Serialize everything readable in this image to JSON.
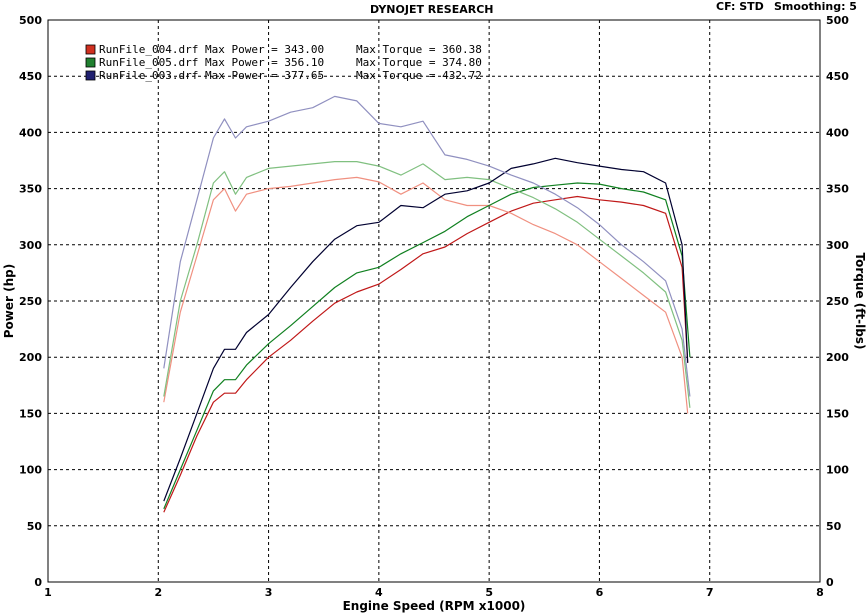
{
  "header": {
    "title": "DYNOJET RESEARCH",
    "cf_label": "CF: STD",
    "smoothing_label": "Smoothing: 5"
  },
  "legend": [
    {
      "name": "RunFile_004.drf",
      "power_label": "Max Power = 343.00",
      "torque_label": "Max Torque = 360.38",
      "color": "#d03020"
    },
    {
      "name": "RunFile_005.drf",
      "power_label": "Max Power = 356.10",
      "torque_label": "Max Torque = 374.80",
      "color": "#208030"
    },
    {
      "name": "RunFile_003.drf",
      "power_label": "Max Power = 377.65",
      "torque_label": "Max Torque = 432.72",
      "color": "#202070"
    }
  ],
  "chart_data": {
    "type": "line",
    "title": "DYNOJET RESEARCH",
    "xlabel": "Engine Speed (RPM x1000)",
    "ylabel": "Power (hp)",
    "y2label": "Torque (ft-lbs)",
    "xlim": [
      1,
      8
    ],
    "ylim": [
      0,
      500
    ],
    "y2lim": [
      0,
      500
    ],
    "xticks": [
      "1",
      "2",
      "3",
      "4",
      "5",
      "6",
      "7",
      "8"
    ],
    "yticks": [
      "0",
      "50",
      "100",
      "150",
      "200",
      "250",
      "300",
      "350",
      "400",
      "450",
      "500"
    ],
    "y2ticks": [
      "0",
      "50",
      "100",
      "150",
      "200",
      "250",
      "300",
      "350",
      "400",
      "450",
      "500"
    ],
    "grid": true,
    "legend_position": "top-left",
    "series": [
      {
        "name": "RunFile_004.drf",
        "kind": "power",
        "color": "#c01818",
        "x": [
          2.05,
          2.2,
          2.35,
          2.5,
          2.6,
          2.7,
          2.8,
          3.0,
          3.2,
          3.4,
          3.6,
          3.8,
          4.0,
          4.2,
          4.4,
          4.6,
          4.8,
          5.0,
          5.2,
          5.4,
          5.6,
          5.8,
          6.0,
          6.2,
          6.4,
          6.6,
          6.75,
          6.8
        ],
        "y": [
          62,
          95,
          130,
          160,
          168,
          168,
          180,
          200,
          215,
          232,
          248,
          258,
          265,
          278,
          292,
          298,
          310,
          320,
          330,
          337,
          340,
          343,
          340,
          338,
          335,
          328,
          280,
          195
        ]
      },
      {
        "name": "RunFile_004.drf",
        "kind": "torque",
        "color": "#f09080",
        "x": [
          2.05,
          2.2,
          2.35,
          2.5,
          2.6,
          2.7,
          2.8,
          3.0,
          3.2,
          3.4,
          3.6,
          3.8,
          4.0,
          4.2,
          4.4,
          4.6,
          4.8,
          5.0,
          5.2,
          5.4,
          5.6,
          5.8,
          6.0,
          6.2,
          6.4,
          6.6,
          6.75,
          6.8
        ],
        "y": [
          160,
          240,
          290,
          340,
          350,
          330,
          345,
          350,
          352,
          355,
          358,
          360,
          356,
          345,
          355,
          340,
          335,
          335,
          328,
          318,
          310,
          300,
          285,
          270,
          255,
          240,
          200,
          150
        ]
      },
      {
        "name": "RunFile_005.drf",
        "kind": "power",
        "color": "#108020",
        "x": [
          2.05,
          2.2,
          2.35,
          2.5,
          2.6,
          2.7,
          2.8,
          3.0,
          3.2,
          3.4,
          3.6,
          3.8,
          4.0,
          4.2,
          4.4,
          4.6,
          4.8,
          5.0,
          5.2,
          5.4,
          5.6,
          5.8,
          6.0,
          6.2,
          6.4,
          6.6,
          6.75,
          6.82
        ],
        "y": [
          65,
          100,
          135,
          170,
          180,
          180,
          193,
          212,
          228,
          245,
          262,
          275,
          280,
          292,
          302,
          312,
          325,
          335,
          345,
          351,
          353,
          355,
          354,
          350,
          347,
          340,
          290,
          200
        ]
      },
      {
        "name": "RunFile_005.drf",
        "kind": "torque",
        "color": "#80c080",
        "x": [
          2.05,
          2.2,
          2.35,
          2.5,
          2.6,
          2.7,
          2.8,
          3.0,
          3.2,
          3.4,
          3.6,
          3.8,
          4.0,
          4.2,
          4.4,
          4.6,
          4.8,
          5.0,
          5.2,
          5.4,
          5.6,
          5.8,
          6.0,
          6.2,
          6.4,
          6.6,
          6.75,
          6.82
        ],
        "y": [
          165,
          250,
          300,
          355,
          365,
          345,
          360,
          368,
          370,
          372,
          374,
          374,
          370,
          362,
          372,
          358,
          360,
          358,
          350,
          342,
          332,
          320,
          305,
          290,
          275,
          258,
          215,
          155
        ]
      },
      {
        "name": "RunFile_003.drf",
        "kind": "power",
        "color": "#000030",
        "x": [
          2.05,
          2.2,
          2.35,
          2.5,
          2.6,
          2.7,
          2.8,
          3.0,
          3.2,
          3.4,
          3.6,
          3.8,
          4.0,
          4.2,
          4.4,
          4.6,
          4.8,
          5.0,
          5.2,
          5.4,
          5.6,
          5.8,
          6.0,
          6.2,
          6.4,
          6.6,
          6.75,
          6.8
        ],
        "y": [
          72,
          110,
          150,
          190,
          207,
          207,
          222,
          238,
          262,
          285,
          305,
          317,
          320,
          335,
          333,
          345,
          348,
          355,
          368,
          372,
          377,
          373,
          370,
          367,
          365,
          355,
          300,
          195
        ]
      },
      {
        "name": "RunFile_003.drf",
        "kind": "torque",
        "color": "#9090c0",
        "x": [
          2.05,
          2.2,
          2.35,
          2.5,
          2.6,
          2.7,
          2.8,
          3.0,
          3.2,
          3.4,
          3.6,
          3.8,
          4.0,
          4.2,
          4.4,
          4.6,
          4.8,
          5.0,
          5.2,
          5.4,
          5.6,
          5.8,
          6.0,
          6.2,
          6.4,
          6.6,
          6.75,
          6.82
        ],
        "y": [
          190,
          285,
          340,
          395,
          412,
          395,
          405,
          410,
          418,
          422,
          432,
          428,
          408,
          405,
          410,
          380,
          376,
          370,
          362,
          355,
          345,
          333,
          318,
          300,
          285,
          268,
          225,
          165
        ]
      }
    ]
  }
}
